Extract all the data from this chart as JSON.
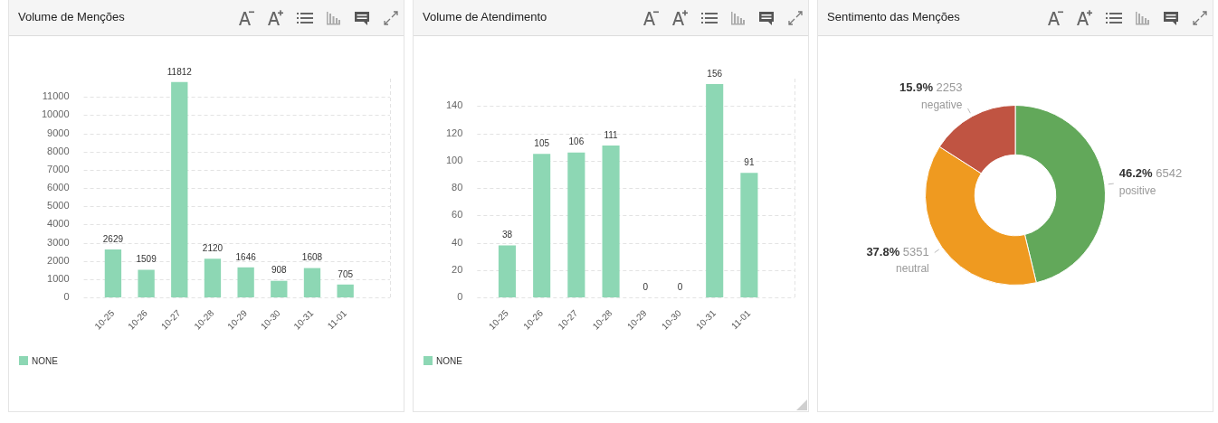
{
  "chart_data": [
    {
      "type": "bar",
      "title": "Volume de Menções",
      "categories": [
        "10-25",
        "10-26",
        "10-27",
        "10-28",
        "10-29",
        "10-30",
        "10-31",
        "11-01"
      ],
      "series": [
        {
          "name": "NONE",
          "color": "#8dd7b4",
          "values": [
            2629,
            1509,
            11812,
            2120,
            1646,
            908,
            1608,
            705
          ]
        }
      ],
      "ylim": [
        0,
        12000
      ],
      "yticks": [
        0,
        1000,
        2000,
        3000,
        4000,
        5000,
        6000,
        7000,
        8000,
        9000,
        10000,
        11000
      ],
      "grid": "y",
      "legend": "bottom left",
      "data_labels": true
    },
    {
      "type": "bar",
      "title": "Volume de Atendimento",
      "categories": [
        "10-25",
        "10-26",
        "10-27",
        "10-28",
        "10-29",
        "10-30",
        "10-31",
        "11-01"
      ],
      "series": [
        {
          "name": "NONE",
          "color": "#8dd7b4",
          "values": [
            38,
            105,
            106,
            111,
            0,
            0,
            156,
            91
          ]
        }
      ],
      "ylim": [
        0,
        160
      ],
      "yticks": [
        0,
        20,
        40,
        60,
        80,
        100,
        120,
        140
      ],
      "grid": "y",
      "legend": "bottom left",
      "data_labels": true
    },
    {
      "type": "donut",
      "title": "Sentimento das Menções",
      "categories": [
        "positive",
        "neutral",
        "negative"
      ],
      "values": [
        6542,
        5351,
        2253
      ],
      "colors": [
        "#62a85a",
        "#ef9a20",
        "#c05442"
      ],
      "value_labels": [
        "46.2% 6542",
        "37.8% 5351",
        "15.9% 2253"
      ]
    }
  ]
}
